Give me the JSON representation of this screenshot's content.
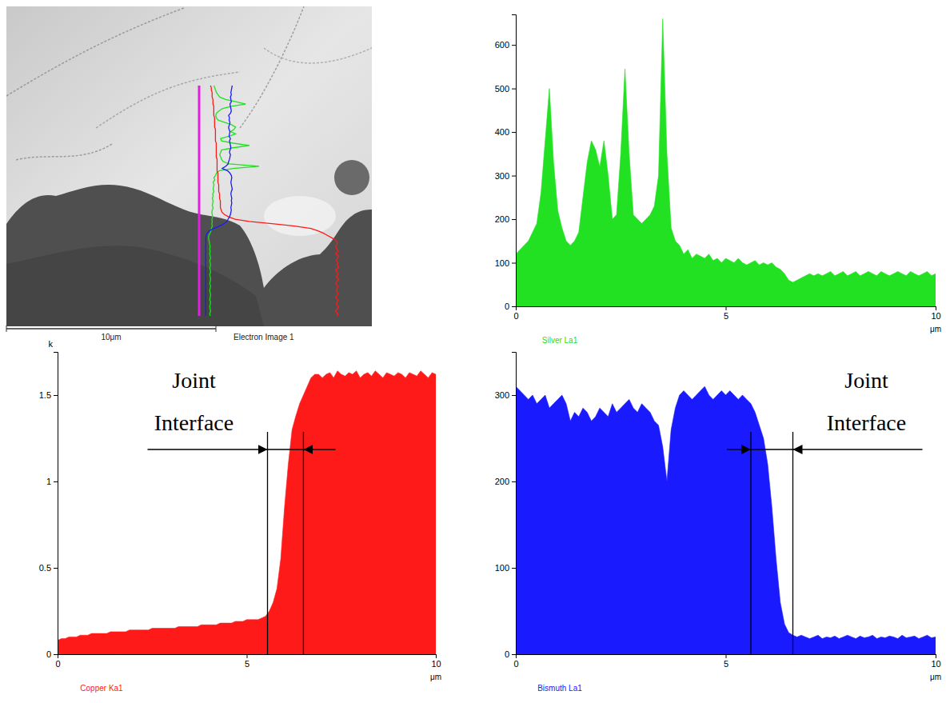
{
  "chart_data": [
    {
      "type": "area",
      "title": "Silver La1",
      "x_label": "μm",
      "color": "#22e022",
      "x": [
        0,
        0.1,
        0.2,
        0.3,
        0.4,
        0.5,
        0.6,
        0.7,
        0.8,
        0.9,
        1,
        1.1,
        1.2,
        1.3,
        1.4,
        1.5,
        1.6,
        1.7,
        1.8,
        1.9,
        2,
        2.1,
        2.2,
        2.3,
        2.4,
        2.5,
        2.6,
        2.7,
        2.8,
        2.9,
        3,
        3.1,
        3.2,
        3.3,
        3.4,
        3.5,
        3.6,
        3.7,
        3.8,
        3.9,
        4,
        4.1,
        4.2,
        4.3,
        4.4,
        4.5,
        4.6,
        4.7,
        4.8,
        4.9,
        5,
        5.1,
        5.2,
        5.3,
        5.4,
        5.5,
        5.6,
        5.7,
        5.8,
        5.9,
        6,
        6.1,
        6.2,
        6.3,
        6.4,
        6.5,
        6.6,
        6.7,
        6.8,
        6.9,
        7,
        7.1,
        7.2,
        7.3,
        7.4,
        7.5,
        7.6,
        7.7,
        7.8,
        7.9,
        8,
        8.1,
        8.2,
        8.3,
        8.4,
        8.5,
        8.6,
        8.7,
        8.8,
        8.9,
        9,
        9.1,
        9.2,
        9.3,
        9.4,
        9.5,
        9.6,
        9.7,
        9.8,
        9.9,
        10
      ],
      "values": [
        120,
        130,
        140,
        150,
        170,
        190,
        260,
        380,
        500,
        330,
        220,
        180,
        150,
        140,
        150,
        170,
        250,
        330,
        380,
        360,
        320,
        380,
        300,
        200,
        210,
        350,
        545,
        350,
        210,
        200,
        190,
        200,
        210,
        230,
        300,
        660,
        350,
        180,
        150,
        140,
        120,
        130,
        110,
        120,
        115,
        110,
        120,
        105,
        110,
        100,
        110,
        105,
        100,
        110,
        100,
        95,
        100,
        105,
        95,
        100,
        95,
        100,
        90,
        85,
        75,
        60,
        55,
        60,
        65,
        70,
        75,
        70,
        75,
        70,
        75,
        80,
        70,
        75,
        80,
        70,
        75,
        80,
        70,
        75,
        80,
        75,
        70,
        80,
        75,
        70,
        75,
        80,
        75,
        70,
        80,
        75,
        70,
        75,
        80,
        70,
        75
      ],
      "xlim": [
        0,
        10
      ],
      "xticks": [
        0,
        5,
        10
      ],
      "ylim": [
        0,
        670
      ],
      "yticks": [
        0,
        100,
        200,
        300,
        400,
        500,
        600
      ]
    },
    {
      "type": "area",
      "title": "Copper Ka1",
      "x_label": "μm",
      "y_label": "k",
      "color": "#ff1a1a",
      "x": [
        0,
        0.1,
        0.2,
        0.3,
        0.4,
        0.5,
        0.6,
        0.7,
        0.8,
        0.9,
        1,
        1.1,
        1.2,
        1.3,
        1.4,
        1.5,
        1.6,
        1.7,
        1.8,
        1.9,
        2,
        2.1,
        2.2,
        2.3,
        2.4,
        2.5,
        2.6,
        2.7,
        2.8,
        2.9,
        3,
        3.1,
        3.2,
        3.3,
        3.4,
        3.5,
        3.6,
        3.7,
        3.8,
        3.9,
        4,
        4.1,
        4.2,
        4.3,
        4.4,
        4.5,
        4.6,
        4.7,
        4.8,
        4.9,
        5,
        5.1,
        5.2,
        5.3,
        5.4,
        5.5,
        5.6,
        5.7,
        5.8,
        5.9,
        6,
        6.1,
        6.2,
        6.3,
        6.4,
        6.5,
        6.6,
        6.7,
        6.8,
        6.9,
        7,
        7.1,
        7.2,
        7.3,
        7.4,
        7.5,
        7.6,
        7.7,
        7.8,
        7.9,
        8,
        8.1,
        8.2,
        8.3,
        8.4,
        8.5,
        8.6,
        8.7,
        8.8,
        8.9,
        9,
        9.1,
        9.2,
        9.3,
        9.4,
        9.5,
        9.6,
        9.7,
        9.8,
        9.9,
        10
      ],
      "values": [
        0.08,
        0.09,
        0.09,
        0.1,
        0.1,
        0.1,
        0.11,
        0.11,
        0.11,
        0.12,
        0.12,
        0.12,
        0.12,
        0.12,
        0.13,
        0.13,
        0.13,
        0.13,
        0.13,
        0.14,
        0.14,
        0.14,
        0.14,
        0.14,
        0.14,
        0.15,
        0.15,
        0.15,
        0.15,
        0.15,
        0.15,
        0.15,
        0.16,
        0.16,
        0.16,
        0.16,
        0.16,
        0.16,
        0.17,
        0.17,
        0.17,
        0.17,
        0.17,
        0.18,
        0.18,
        0.18,
        0.18,
        0.19,
        0.19,
        0.19,
        0.2,
        0.2,
        0.2,
        0.2,
        0.21,
        0.22,
        0.25,
        0.3,
        0.38,
        0.55,
        0.85,
        1.1,
        1.3,
        1.38,
        1.45,
        1.5,
        1.55,
        1.6,
        1.62,
        1.62,
        1.6,
        1.62,
        1.63,
        1.6,
        1.64,
        1.62,
        1.61,
        1.63,
        1.62,
        1.64,
        1.6,
        1.62,
        1.63,
        1.61,
        1.64,
        1.62,
        1.6,
        1.63,
        1.62,
        1.61,
        1.63,
        1.62,
        1.6,
        1.63,
        1.62,
        1.61,
        1.64,
        1.62,
        1.6,
        1.63,
        1.62
      ],
      "xlim": [
        0,
        10
      ],
      "xticks": [
        0,
        5,
        10
      ],
      "ylim": [
        0,
        1.75
      ],
      "yticks": [
        0,
        0.5,
        1,
        1.5
      ],
      "annotations": [
        {
          "text": "Joint Interface",
          "x": [
            5.55,
            6.5
          ]
        }
      ]
    },
    {
      "type": "area",
      "title": "Bismuth La1",
      "x_label": "μm",
      "color": "#1a1aff",
      "x": [
        0,
        0.1,
        0.2,
        0.3,
        0.4,
        0.5,
        0.6,
        0.7,
        0.8,
        0.9,
        1,
        1.1,
        1.2,
        1.3,
        1.4,
        1.5,
        1.6,
        1.7,
        1.8,
        1.9,
        2,
        2.1,
        2.2,
        2.3,
        2.4,
        2.5,
        2.6,
        2.7,
        2.8,
        2.9,
        3,
        3.1,
        3.2,
        3.3,
        3.4,
        3.5,
        3.6,
        3.7,
        3.8,
        3.9,
        4,
        4.1,
        4.2,
        4.3,
        4.4,
        4.5,
        4.6,
        4.7,
        4.8,
        4.9,
        5,
        5.1,
        5.2,
        5.3,
        5.4,
        5.5,
        5.6,
        5.7,
        5.8,
        5.9,
        6,
        6.1,
        6.2,
        6.3,
        6.4,
        6.5,
        6.6,
        6.7,
        6.8,
        6.9,
        7,
        7.1,
        7.2,
        7.3,
        7.4,
        7.5,
        7.6,
        7.7,
        7.8,
        7.9,
        8,
        8.1,
        8.2,
        8.3,
        8.4,
        8.5,
        8.6,
        8.7,
        8.8,
        8.9,
        9,
        9.1,
        9.2,
        9.3,
        9.4,
        9.5,
        9.6,
        9.7,
        9.8,
        9.9,
        10
      ],
      "values": [
        310,
        305,
        300,
        295,
        300,
        290,
        295,
        300,
        285,
        290,
        295,
        300,
        290,
        270,
        280,
        275,
        285,
        280,
        270,
        275,
        285,
        280,
        275,
        290,
        280,
        285,
        290,
        295,
        285,
        280,
        290,
        285,
        280,
        270,
        265,
        240,
        200,
        260,
        285,
        300,
        305,
        300,
        295,
        300,
        305,
        310,
        300,
        295,
        300,
        305,
        300,
        305,
        300,
        295,
        300,
        295,
        290,
        280,
        265,
        250,
        220,
        170,
        110,
        60,
        35,
        25,
        22,
        20,
        22,
        20,
        18,
        20,
        22,
        18,
        20,
        19,
        21,
        18,
        20,
        22,
        20,
        18,
        21,
        19,
        20,
        22,
        18,
        20,
        19,
        21,
        20,
        18,
        22,
        19,
        20,
        21,
        18,
        20,
        22,
        19,
        20
      ],
      "xlim": [
        0,
        10
      ],
      "xticks": [
        0,
        5,
        10
      ],
      "ylim": [
        0,
        350
      ],
      "yticks": [
        0,
        100,
        200,
        300
      ],
      "annotations": [
        {
          "text": "Joint Interface",
          "x": [
            5.6,
            6.6
          ]
        }
      ]
    }
  ],
  "electron_image": {
    "scale_bar": "10μm",
    "caption": "Electron Image 1"
  }
}
